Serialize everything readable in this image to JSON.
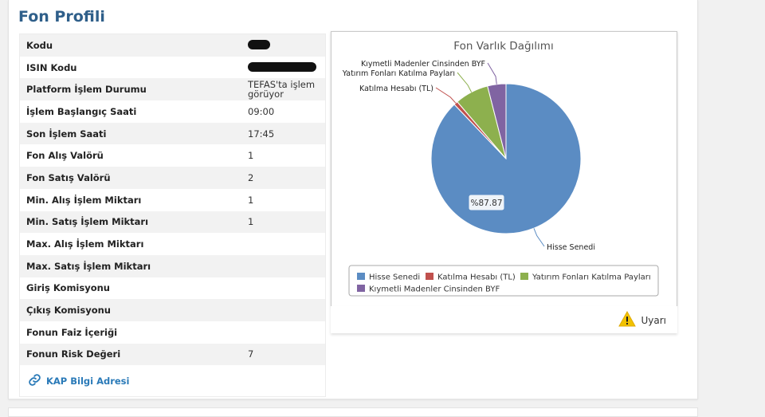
{
  "page": {
    "title": "Fon Profili"
  },
  "info": {
    "rows": [
      {
        "label": "Kodu",
        "value": "",
        "masked": true,
        "mask_width": 28
      },
      {
        "label": "ISIN Kodu",
        "value": "",
        "masked": true,
        "mask_width": 86
      },
      {
        "label": "Platform İşlem Durumu",
        "value": "TEFAS'ta işlem görüyor"
      },
      {
        "label": "İşlem Başlangıç Saati",
        "value": "09:00"
      },
      {
        "label": "Son İşlem Saati",
        "value": "17:45"
      },
      {
        "label": "Fon Alış Valörü",
        "value": "1"
      },
      {
        "label": "Fon Satış Valörü",
        "value": "2"
      },
      {
        "label": "Min. Alış İşlem Miktarı",
        "value": "1"
      },
      {
        "label": "Min. Satış İşlem Miktarı",
        "value": "1"
      },
      {
        "label": "Max. Alış İşlem Miktarı",
        "value": ""
      },
      {
        "label": "Max. Satış İşlem Miktarı",
        "value": ""
      },
      {
        "label": "Giriş Komisyonu",
        "value": ""
      },
      {
        "label": "Çıkış Komisyonu",
        "value": ""
      },
      {
        "label": "Fonun Faiz İçeriği",
        "value": ""
      },
      {
        "label": "Fonun Risk Değeri",
        "value": "7"
      }
    ],
    "kap_link": "KAP Bilgi Adresi",
    "kap_icon": "link-icon"
  },
  "warning": {
    "label": "Uyarı",
    "icon": "warning-icon",
    "color": "#f2c200"
  },
  "chart_data": {
    "type": "pie",
    "title": "Fon Varlık Dağılımı",
    "unit": "%",
    "slices": [
      {
        "name": "Hisse Senedi",
        "value": 87.87,
        "color": "#5b8cc3"
      },
      {
        "name": "Katılma Hesabı (TL)",
        "value": 0.85,
        "color": "#c0504d"
      },
      {
        "name": "Yatırım Fonları Katılma Payları",
        "value": 7.3,
        "color": "#8db04e"
      },
      {
        "name": "Kıymetli Madenler Cinsinden BYF",
        "value": 3.98,
        "color": "#8064a2"
      }
    ],
    "visible_value_label": "%87.87",
    "legend": {
      "placement": "bottom",
      "items": [
        "Hisse Senedi",
        "Katılma Hesabı (TL)",
        "Yatırım Fonları Katılma Payları",
        "Kıymetli Madenler Cinsinden BYF"
      ]
    }
  }
}
